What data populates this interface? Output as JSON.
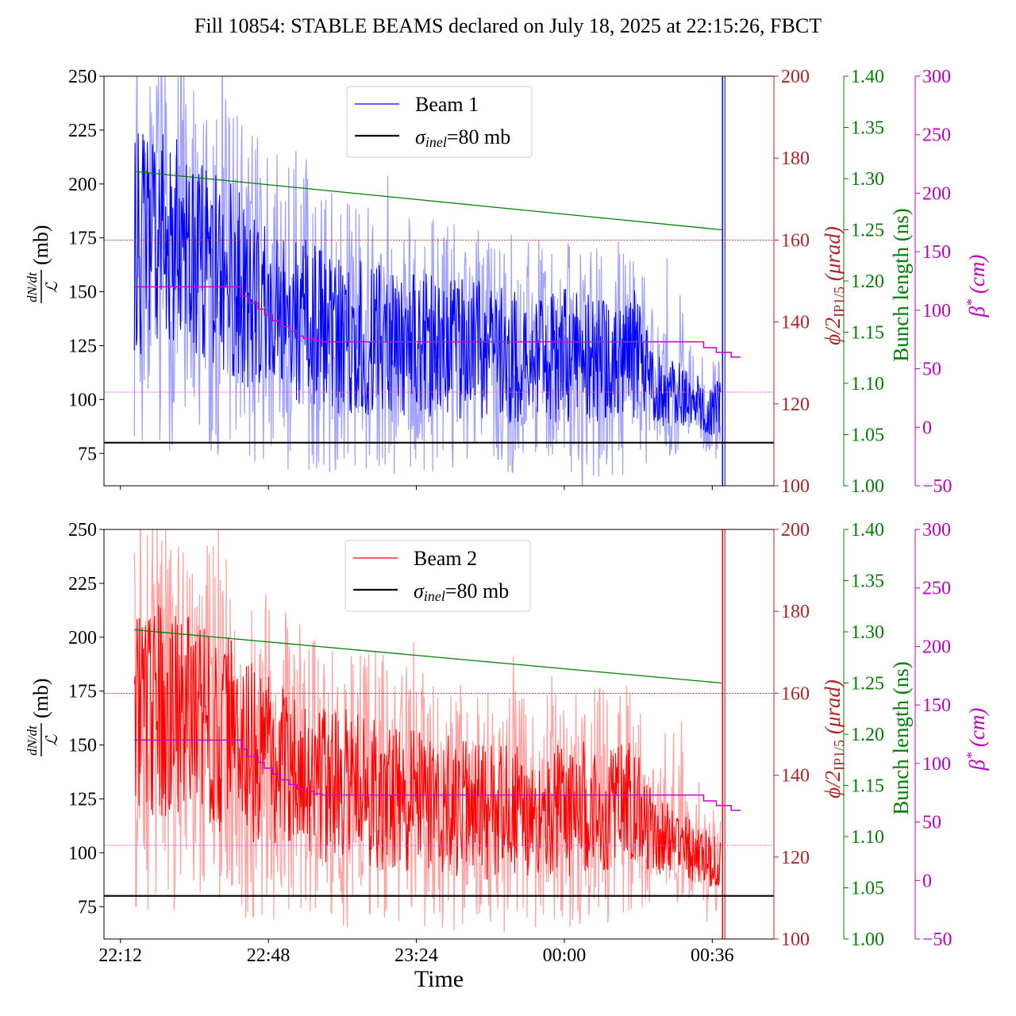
{
  "figure": {
    "title": "Fill 10854: STABLE BEAMS declared on July 18, 2025 at 22:15:26, FBCT"
  },
  "chart_data": [
    {
      "type": "line",
      "panel": "top",
      "title": "Fill 10854: STABLE BEAMS declared on July 18, 2025 at 22:15:26, FBCT",
      "xlabel": "",
      "x_range_minutes_after_2212": [
        -4,
        159
      ],
      "x_ticks": [
        "22:12",
        "22:48",
        "23:24",
        "00:00",
        "00:36"
      ],
      "x_tick_minutes_after_2212": [
        0,
        36,
        72,
        108,
        144
      ],
      "left_axis": {
        "ylabel_fraction_num": "dN/dt",
        "ylabel_fraction_den": "ℒ",
        "ylabel_unit": "(mb)",
        "ylim": [
          60,
          250
        ],
        "ticks": [
          75,
          100,
          125,
          150,
          175,
          200,
          225,
          250
        ]
      },
      "right_axes": [
        {
          "name": "crossing-angle",
          "label": "ϕ/2",
          "label_sub": "IP1/5",
          "label_unit": "(μrad)",
          "color": "#b22222",
          "ylim": [
            100,
            200
          ],
          "ticks": [
            100,
            120,
            140,
            160,
            180,
            200
          ]
        },
        {
          "name": "bunch-length",
          "label": "Bunch length (ns)",
          "color": "#008000",
          "ylim": [
            1.0,
            1.4
          ],
          "ticks": [
            "1.00",
            "1.05",
            "1.10",
            "1.15",
            "1.20",
            "1.25",
            "1.30",
            "1.35",
            "1.40"
          ]
        },
        {
          "name": "beta-star",
          "label": "β",
          "label_sup": "*",
          "label_unit": "(cm)",
          "color": "#c000c0",
          "ylim": [
            -50,
            300
          ],
          "ticks": [
            -50,
            0,
            50,
            100,
            150,
            200,
            250,
            300
          ]
        }
      ],
      "legend": {
        "position": "top-center",
        "entries": [
          {
            "label": "Beam 1",
            "color": "#0000ff"
          },
          {
            "label_main": "σ",
            "label_sub": "inel",
            "label_rest": "=80 mb",
            "color": "#000000"
          }
        ]
      },
      "series": [
        {
          "name": "Beam 1 dN/dt / L (mean)",
          "axis": "left",
          "color": "#0000ff",
          "x_minutes": [
            3.4,
            10,
            20,
            30,
            40,
            50,
            60,
            70,
            80,
            90,
            100,
            110,
            120,
            125,
            130,
            140,
            146
          ],
          "values": [
            175,
            172,
            165,
            150,
            140,
            132,
            128,
            126,
            124,
            122,
            120,
            120,
            118,
            122,
            105,
            100,
            95
          ],
          "noise_amplitude_mb": [
            60,
            60,
            55,
            50,
            45,
            42,
            40,
            38,
            36,
            36,
            35,
            35,
            34,
            35,
            20,
            15,
            15
          ]
        },
        {
          "name": "sigma_inel",
          "axis": "left",
          "color": "#000000",
          "constant": 80
        },
        {
          "name": "Bunch length",
          "axis": "bunch-length",
          "color": "#008000",
          "x_minutes": [
            3.4,
            146.3
          ],
          "values": [
            1.307,
            1.25
          ]
        },
        {
          "name": "beta*",
          "axis": "beta-star",
          "color": "#cc00cc",
          "x_minutes": [
            3.4,
            29.5,
            29.5,
            31,
            31,
            33.5,
            33.5,
            35,
            35,
            37,
            37,
            39,
            39,
            41,
            41,
            43,
            43,
            44.5,
            44.5,
            47,
            47,
            49,
            49,
            50.8,
            50.8,
            141.9,
            141.9,
            145,
            145,
            148.6,
            148.6,
            150.9
          ],
          "values": [
            120,
            120,
            112,
            112,
            106,
            106,
            101,
            101,
            96,
            96,
            91,
            91,
            86,
            86,
            82,
            82,
            78,
            78,
            76,
            76,
            74,
            74,
            73,
            73,
            73,
            73,
            68,
            68,
            64,
            64,
            60,
            60
          ]
        },
        {
          "name": "crossing angle reference",
          "axis": "crossing-angle",
          "color": "#b22222",
          "style": "dotted",
          "constant": 160
        },
        {
          "name": "beta* reference",
          "axis": "beta-star",
          "color": "#ee44ee",
          "style": "dotted",
          "constant": 30
        }
      ]
    },
    {
      "type": "line",
      "panel": "bottom",
      "xlabel": "Time",
      "x_range_minutes_after_2212": [
        -4,
        159
      ],
      "x_ticks": [
        "22:12",
        "22:48",
        "23:24",
        "00:00",
        "00:36"
      ],
      "x_tick_minutes_after_2212": [
        0,
        36,
        72,
        108,
        144
      ],
      "left_axis": {
        "ylabel_fraction_num": "dN/dt",
        "ylabel_fraction_den": "ℒ",
        "ylabel_unit": "(mb)",
        "ylim": [
          60,
          250
        ],
        "ticks": [
          75,
          100,
          125,
          150,
          175,
          200,
          225,
          250
        ]
      },
      "right_axes": [
        {
          "name": "crossing-angle",
          "label": "ϕ/2",
          "label_sub": "IP1/5",
          "label_unit": "(μrad)",
          "color": "#b22222",
          "ylim": [
            100,
            200
          ],
          "ticks": [
            100,
            120,
            140,
            160,
            180,
            200
          ]
        },
        {
          "name": "bunch-length",
          "label": "Bunch length (ns)",
          "color": "#008000",
          "ylim": [
            1.0,
            1.4
          ],
          "ticks": [
            "1.00",
            "1.05",
            "1.10",
            "1.15",
            "1.20",
            "1.25",
            "1.30",
            "1.35",
            "1.40"
          ]
        },
        {
          "name": "beta-star",
          "label": "β",
          "label_sup": "*",
          "label_unit": "(cm)",
          "color": "#c000c0",
          "ylim": [
            -50,
            300
          ],
          "ticks": [
            -50,
            0,
            50,
            100,
            150,
            200,
            250,
            300
          ]
        }
      ],
      "legend": {
        "position": "top-center",
        "entries": [
          {
            "label": "Beam 2",
            "color": "#ff0000"
          },
          {
            "label_main": "σ",
            "label_sub": "inel",
            "label_rest": "=80 mb",
            "color": "#000000"
          }
        ]
      },
      "series": [
        {
          "name": "Beam 2 dN/dt / L (mean)",
          "axis": "left",
          "color": "#ff0000",
          "x_minutes": [
            3.4,
            10,
            20,
            30,
            40,
            50,
            60,
            70,
            80,
            90,
            100,
            110,
            120,
            125,
            130,
            140,
            146
          ],
          "values": [
            170,
            168,
            160,
            150,
            140,
            133,
            128,
            125,
            122,
            118,
            118,
            120,
            122,
            125,
            110,
            100,
            95
          ],
          "noise_amplitude_mb": [
            60,
            60,
            55,
            50,
            45,
            42,
            40,
            38,
            36,
            36,
            35,
            35,
            34,
            35,
            22,
            15,
            15
          ]
        },
        {
          "name": "sigma_inel",
          "axis": "left",
          "color": "#000000",
          "constant": 80
        },
        {
          "name": "Bunch length",
          "axis": "bunch-length",
          "color": "#008000",
          "x_minutes": [
            3.4,
            146.3
          ],
          "values": [
            1.302,
            1.25
          ]
        },
        {
          "name": "beta*",
          "axis": "beta-star",
          "color": "#cc00cc",
          "x_minutes": [
            3.4,
            29.5,
            29.5,
            31,
            31,
            33.5,
            33.5,
            35,
            35,
            37,
            37,
            39,
            39,
            41,
            41,
            43,
            43,
            44.5,
            44.5,
            47,
            47,
            49,
            49,
            50.8,
            50.8,
            141.9,
            141.9,
            145,
            145,
            148.6,
            148.6,
            150.9
          ],
          "values": [
            120,
            120,
            112,
            112,
            106,
            106,
            101,
            101,
            96,
            96,
            91,
            91,
            86,
            86,
            82,
            82,
            78,
            78,
            76,
            76,
            74,
            74,
            73,
            73,
            73,
            73,
            68,
            68,
            64,
            64,
            60,
            60
          ]
        },
        {
          "name": "crossing angle reference",
          "axis": "crossing-angle",
          "color": "#b22222",
          "style": "dotted",
          "constant": 160
        },
        {
          "name": "beta* reference",
          "axis": "beta-star",
          "color": "#ee44ee",
          "style": "dotted",
          "constant": 30
        }
      ]
    }
  ]
}
